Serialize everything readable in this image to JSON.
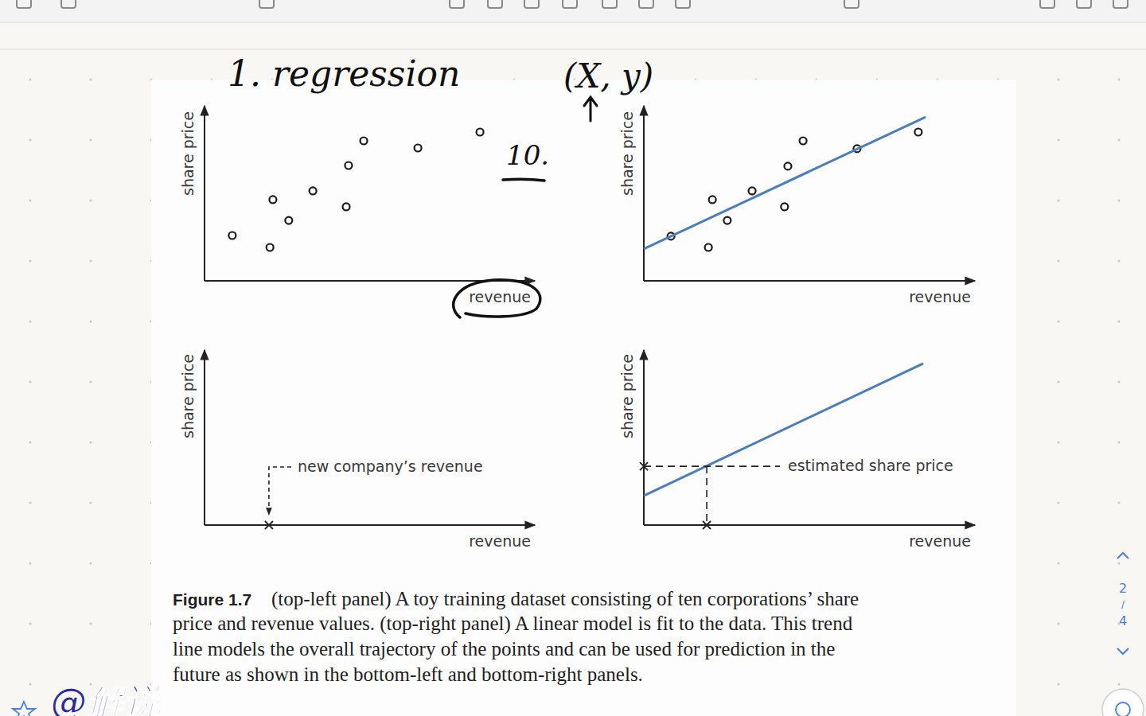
{
  "header": {
    "page_indicator": {
      "current": 2,
      "separator": "/",
      "total": 4
    }
  },
  "handwriting": {
    "title": "1. regression",
    "pair": "(X, y)",
    "count": "10."
  },
  "chart_data": [
    {
      "type": "scatter",
      "ylabel": "share price",
      "xlabel": "revenue",
      "xlim": [
        0,
        10
      ],
      "ylim": [
        0,
        10
      ],
      "tick_labels": false,
      "series": [
        {
          "type": "scatter",
          "marker": "circle",
          "color": "#1a1a1a",
          "x": [
            0.84,
            1.98,
            2.07,
            2.55,
            3.28,
            4.29,
            4.36,
            4.82,
            6.46,
            8.34
          ],
          "values": [
            2.59,
            1.91,
            4.64,
            3.45,
            5.14,
            4.23,
            6.59,
            8.0,
            7.59,
            8.5
          ]
        }
      ]
    },
    {
      "type": "scatter",
      "ylabel": "share price",
      "xlabel": "revenue",
      "xlim": [
        0,
        10
      ],
      "ylim": [
        0,
        10
      ],
      "tick_labels": false,
      "series": [
        {
          "type": "scatter",
          "marker": "circle",
          "color": "#1a1a1a",
          "x": [
            0.82,
            1.95,
            2.07,
            2.52,
            3.27,
            4.25,
            4.35,
            4.81,
            6.44,
            8.29
          ],
          "values": [
            2.55,
            1.91,
            4.64,
            3.45,
            5.14,
            4.23,
            6.55,
            8.0,
            7.55,
            8.5
          ]
        },
        {
          "type": "line",
          "color": "#4a7ebb",
          "x": [
            0,
            8.51
          ],
          "values": [
            1.82,
            9.36
          ]
        }
      ]
    },
    {
      "type": "scatter",
      "ylabel": "share price",
      "xlabel": "revenue",
      "xlim": [
        0,
        10
      ],
      "ylim": [
        0,
        10
      ],
      "tick_labels": false,
      "series": [],
      "annotation": {
        "text": "new company’s revenue",
        "x": 1.95,
        "marker": "x"
      }
    },
    {
      "type": "line",
      "ylabel": "share price",
      "xlabel": "revenue",
      "xlim": [
        0,
        10
      ],
      "ylim": [
        0,
        10
      ],
      "tick_labels": false,
      "series": [
        {
          "type": "line",
          "color": "#4a7ebb",
          "x": [
            0,
            8.44
          ],
          "values": [
            1.68,
            9.23
          ]
        }
      ],
      "annotation": {
        "text": "estimated share price",
        "x": 1.9,
        "y": 3.36,
        "marker": "x"
      }
    }
  ],
  "caption": {
    "label": "Figure 1.7",
    "lines": [
      "(top-left panel) A toy training dataset consisting of ten corporations’ share",
      "price and revenue values. (top-right panel) A linear model is fit to the data. This trend",
      "line models the overall trajectory of the points and can be used for prediction in the",
      "future as shown in the bottom-left and bottom-right panels."
    ]
  },
  "watermark": "@解说"
}
